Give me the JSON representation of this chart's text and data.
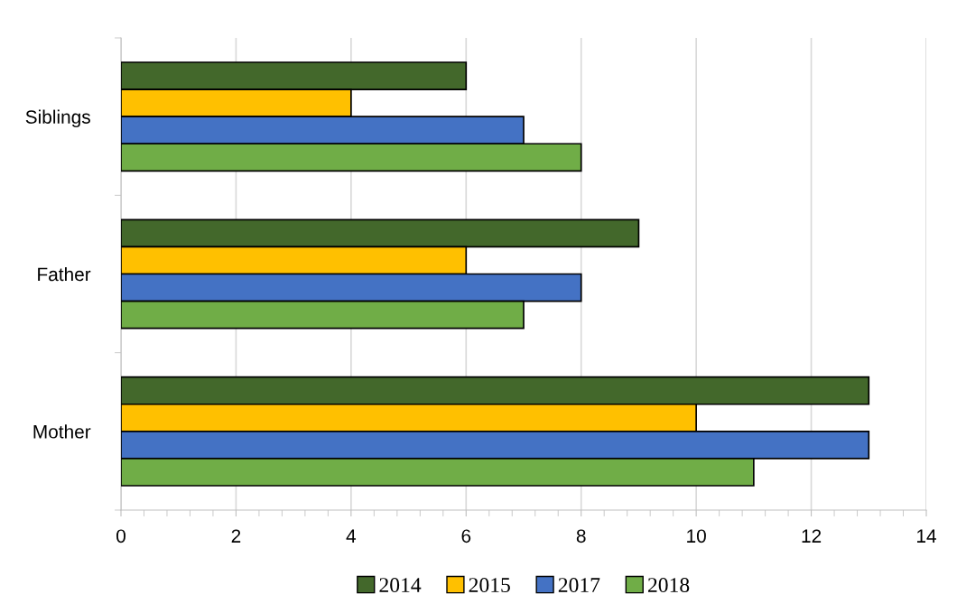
{
  "chart_data": {
    "type": "bar",
    "orientation": "horizontal",
    "categories": [
      "Siblings",
      "Father",
      "Mother"
    ],
    "series": [
      {
        "name": "2014",
        "color": "#43682b",
        "values": [
          6,
          9,
          13
        ]
      },
      {
        "name": "2015",
        "color": "#ffc000",
        "values": [
          4,
          6,
          10
        ]
      },
      {
        "name": "2017",
        "color": "#4472c4",
        "values": [
          7,
          8,
          13
        ]
      },
      {
        "name": "2018",
        "color": "#70ad47",
        "values": [
          8,
          7,
          11
        ]
      }
    ],
    "xlim": [
      0,
      14
    ],
    "xticks": [
      0,
      2,
      4,
      6,
      8,
      10,
      12,
      14
    ],
    "grid": "x",
    "legend": "bottom"
  }
}
